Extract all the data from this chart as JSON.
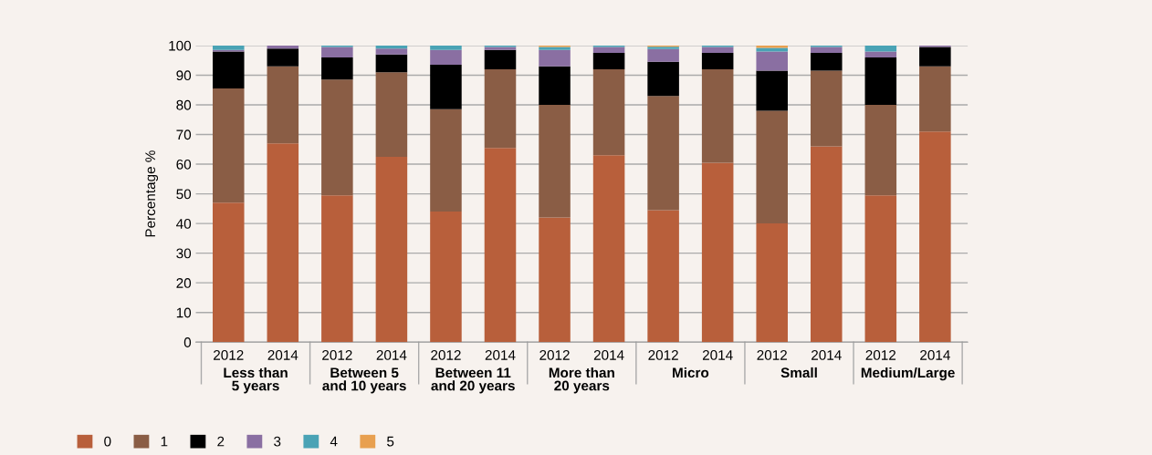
{
  "chart_data": {
    "type": "bar",
    "stacked": true,
    "ylabel": "Percentage %",
    "categories": [
      "2012",
      "2014",
      "2012",
      "2014",
      "2012",
      "2014",
      "2012",
      "2014",
      "2012",
      "2014",
      "2012",
      "2014",
      "2012",
      "2014"
    ],
    "annotations": [
      "Less than\n5 years",
      "Between 5\nand 10 years",
      "Between 11\nand 20 years",
      "More than\n20 years",
      "Micro",
      "Small",
      "Medium/Large"
    ],
    "series": [
      {
        "name": "0",
        "color": "#b85f3b",
        "values": [
          47,
          67,
          49.5,
          62.5,
          44,
          65.5,
          42,
          63,
          44.5,
          60.5,
          40,
          66,
          49.5,
          71
        ]
      },
      {
        "name": "1",
        "color": "#8a5d45",
        "values": [
          38.5,
          26,
          39,
          28.5,
          34.5,
          26.5,
          38,
          29,
          38.5,
          31.5,
          38,
          25.5,
          30.5,
          22
        ]
      },
      {
        "name": "2",
        "color": "#000000",
        "values": [
          12.5,
          6,
          7.5,
          6,
          15,
          6.5,
          13,
          5.5,
          11.5,
          5.5,
          13.5,
          6,
          16,
          6.5
        ]
      },
      {
        "name": "3",
        "color": "#8a6fa2",
        "values": [
          0.5,
          1,
          3.5,
          2,
          5,
          1,
          5.5,
          2,
          4.3,
          2,
          6.5,
          2,
          2,
          0.5
        ]
      },
      {
        "name": "4",
        "color": "#4aa3b5",
        "values": [
          1.5,
          0,
          0.5,
          1,
          1.5,
          0.5,
          1,
          0.5,
          0.8,
          0.5,
          1.2,
          0.5,
          2,
          0
        ]
      },
      {
        "name": "5",
        "color": "#e8a050",
        "values": [
          0,
          0,
          0,
          0,
          0,
          0,
          0.5,
          0,
          0.4,
          0,
          0.8,
          0,
          0,
          0
        ]
      }
    ],
    "ylim": [
      0,
      100
    ],
    "yticks": [
      0,
      10,
      20,
      30,
      40,
      50,
      60,
      70,
      80,
      90,
      100
    ],
    "grid": "y",
    "legend": "bottom left"
  }
}
